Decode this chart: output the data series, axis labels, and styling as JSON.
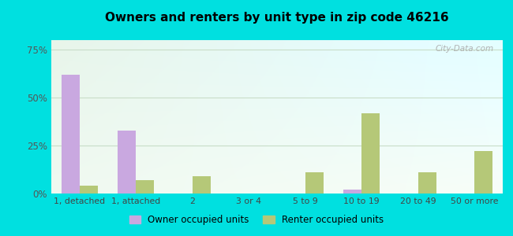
{
  "title": "Owners and renters by unit type in zip code 46216",
  "categories": [
    "1, detached",
    "1, attached",
    "2",
    "3 or 4",
    "5 to 9",
    "10 to 19",
    "20 to 49",
    "50 or more"
  ],
  "owner_values": [
    62,
    33,
    0,
    0,
    0,
    2,
    0,
    0
  ],
  "renter_values": [
    4,
    7,
    9,
    0,
    11,
    42,
    11,
    22
  ],
  "owner_color": "#c9a8e0",
  "renter_color": "#b5c878",
  "background_color": "#00e0e0",
  "plot_bg_color1": "#e8f5e9",
  "plot_bg_color2": "#f5faf5",
  "plot_bg_color3": "#ddeef0",
  "yticks": [
    0,
    25,
    50,
    75
  ],
  "ylim": [
    0,
    80
  ],
  "bar_width": 0.32,
  "legend_owner": "Owner occupied units",
  "legend_renter": "Renter occupied units",
  "watermark": "City-Data.com",
  "grid_color": "#c8ddc8",
  "tick_color": "#888888",
  "title_fontsize": 11
}
